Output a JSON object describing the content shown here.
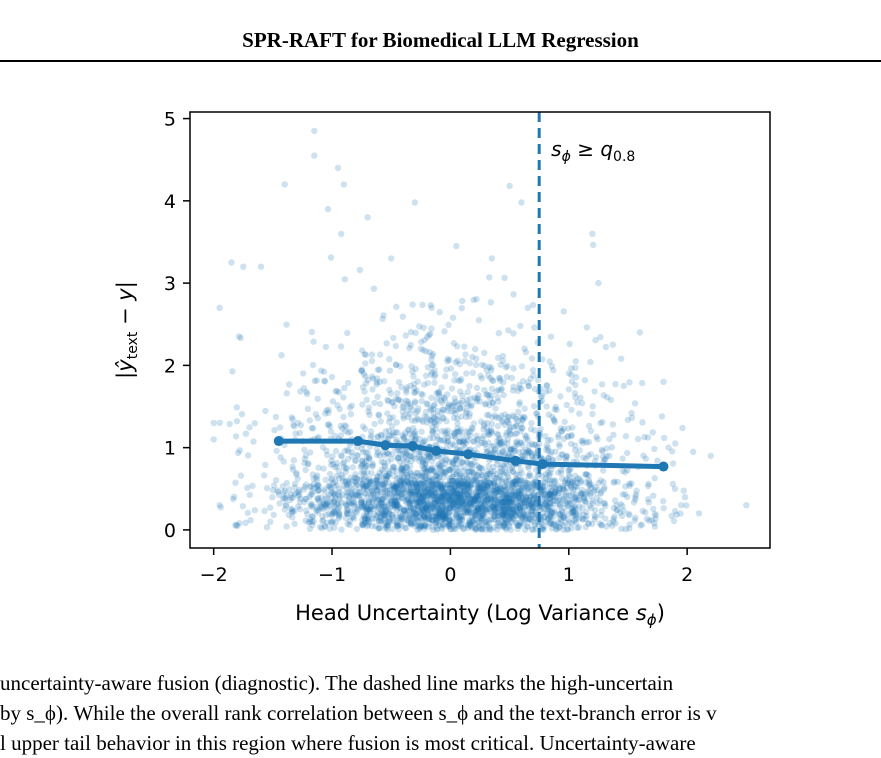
{
  "header": {
    "title": "SPR-RAFT for Biomedical LLM Regression"
  },
  "chart_data": {
    "type": "scatter",
    "xlabel": "Head Uncertainty (Log Variance s_ϕ)",
    "ylabel": "|ŷ_text − y|",
    "xlim": [
      -2.2,
      2.7
    ],
    "ylim": [
      -0.22,
      5.08
    ],
    "xticks": [
      -2,
      -1,
      0,
      1,
      2
    ],
    "xtick_labels": [
      "−2",
      "−1",
      "0",
      "1",
      "2"
    ],
    "yticks": [
      0,
      1,
      2,
      3,
      4,
      5
    ],
    "ytick_labels": [
      "0",
      "1",
      "2",
      "3",
      "4",
      "5"
    ],
    "grid": false,
    "scatter_color": "#1f77b4",
    "scatter_alpha": 0.22,
    "threshold": {
      "x": 0.75,
      "label": "s_ϕ ≥ q_0.8",
      "style": "dashed"
    },
    "trend": {
      "x": [
        -1.45,
        -0.78,
        -0.55,
        -0.32,
        -0.12,
        0.15,
        0.55,
        0.78,
        1.8
      ],
      "y": [
        1.08,
        1.08,
        1.03,
        1.02,
        0.96,
        0.92,
        0.84,
        0.8,
        0.77
      ]
    },
    "points": [
      [
        -1.15,
        4.85
      ],
      [
        -1.15,
        4.55
      ],
      [
        -0.95,
        4.4
      ],
      [
        -0.9,
        4.2
      ],
      [
        -1.4,
        4.2
      ],
      [
        -0.3,
        3.98
      ],
      [
        0.5,
        4.18
      ],
      [
        0.6,
        3.98
      ],
      [
        -0.7,
        3.8
      ],
      [
        1.2,
        3.6
      ],
      [
        -1.75,
        3.2
      ],
      [
        -1.85,
        3.25
      ],
      [
        -1.6,
        3.2
      ],
      [
        -1.95,
        2.7
      ],
      [
        -2.0,
        1.3
      ],
      [
        -2.0,
        1.1
      ],
      [
        -1.95,
        0.3
      ],
      [
        -1.8,
        0.05
      ],
      [
        1.9,
        1.05
      ],
      [
        2.05,
        0.95
      ],
      [
        2.2,
        0.9
      ],
      [
        2.5,
        0.3
      ],
      [
        2.1,
        0.2
      ],
      [
        1.95,
        0.3
      ],
      [
        1.8,
        1.8
      ],
      [
        1.6,
        2.4
      ],
      [
        1.25,
        3.0
      ],
      [
        0.35,
        3.3
      ],
      [
        -0.5,
        3.3
      ],
      [
        0.05,
        3.45
      ]
    ],
    "cloud": {
      "n": 3600,
      "x_mean": 0.05,
      "x_sd": 0.7,
      "y_scale": 0.95
    }
  },
  "caption": {
    "line1": " uncertainty-aware fusion (diagnostic). The dashed line marks the high-uncertain",
    "line2": "by s_ϕ). While the overall rank correlation between s_ϕ and the text-branch error is v",
    "line3": "l upper tail behavior in this region where fusion is most critical. Uncertainty-aware"
  }
}
